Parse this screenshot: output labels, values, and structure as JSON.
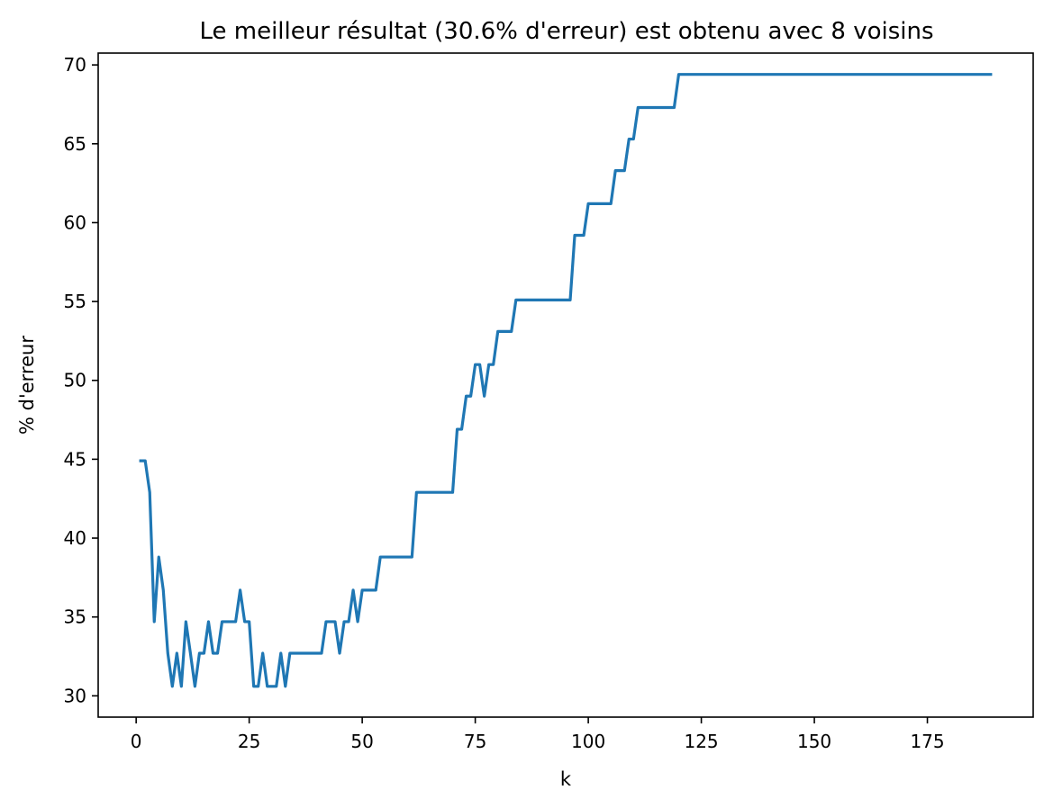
{
  "chart_data": {
    "type": "line",
    "title": "Le meilleur résultat (30.6% d'erreur) est obtenu avec 8 voisins",
    "xlabel": "k",
    "ylabel": "% d'erreur",
    "xlim": [
      -8.4,
      198.4
    ],
    "ylim": [
      28.65,
      70.75
    ],
    "xticks": [
      0,
      25,
      50,
      75,
      100,
      125,
      150,
      175
    ],
    "xtick_labels": [
      "0",
      "25",
      "50",
      "75",
      "100",
      "125",
      "150",
      "175"
    ],
    "yticks": [
      30,
      35,
      40,
      45,
      50,
      55,
      60,
      65,
      70
    ],
    "ytick_labels": [
      "30",
      "35",
      "40",
      "45",
      "50",
      "55",
      "60",
      "65",
      "70"
    ],
    "grid": false,
    "series": [
      {
        "color": "#1f77b4",
        "x": [
          1,
          2,
          3,
          4,
          5,
          6,
          7,
          8,
          9,
          10,
          11,
          12,
          13,
          14,
          15,
          16,
          17,
          18,
          19,
          20,
          21,
          22,
          23,
          24,
          25,
          26,
          27,
          28,
          29,
          30,
          31,
          32,
          33,
          34,
          35,
          36,
          37,
          38,
          39,
          40,
          41,
          42,
          43,
          44,
          45,
          46,
          47,
          48,
          49,
          50,
          51,
          52,
          53,
          54,
          55,
          56,
          57,
          58,
          59,
          60,
          61,
          62,
          63,
          64,
          65,
          66,
          67,
          68,
          69,
          70,
          71,
          72,
          73,
          74,
          75,
          76,
          77,
          78,
          79,
          80,
          81,
          82,
          83,
          84,
          85,
          86,
          87,
          88,
          89,
          90,
          91,
          92,
          93,
          94,
          95,
          96,
          97,
          98,
          99,
          100,
          101,
          102,
          103,
          104,
          105,
          106,
          107,
          108,
          109,
          110,
          111,
          112,
          113,
          114,
          115,
          116,
          117,
          118,
          119,
          120,
          189
        ],
        "y": [
          44.9,
          44.9,
          42.9,
          34.7,
          38.8,
          36.7,
          32.7,
          30.6,
          32.7,
          30.6,
          34.7,
          32.7,
          30.6,
          32.7,
          32.7,
          34.7,
          32.7,
          32.7,
          34.7,
          34.7,
          34.7,
          34.7,
          36.7,
          34.7,
          34.7,
          30.6,
          30.6,
          32.7,
          30.6,
          30.6,
          30.6,
          32.7,
          30.6,
          32.7,
          32.7,
          32.7,
          32.7,
          32.7,
          32.7,
          32.7,
          32.7,
          34.7,
          34.7,
          34.7,
          32.7,
          34.7,
          34.7,
          36.7,
          34.7,
          36.7,
          36.7,
          36.7,
          36.7,
          38.8,
          38.8,
          38.8,
          38.8,
          38.8,
          38.8,
          38.8,
          38.8,
          42.9,
          42.9,
          42.9,
          42.9,
          42.9,
          42.9,
          42.9,
          42.9,
          42.9,
          46.9,
          46.9,
          49.0,
          49.0,
          51.0,
          51.0,
          49.0,
          51.0,
          51.0,
          53.1,
          53.1,
          53.1,
          53.1,
          55.1,
          55.1,
          55.1,
          55.1,
          55.1,
          55.1,
          55.1,
          55.1,
          55.1,
          55.1,
          55.1,
          55.1,
          55.1,
          59.2,
          59.2,
          59.2,
          61.2,
          61.2,
          61.2,
          61.2,
          61.2,
          61.2,
          63.3,
          63.3,
          63.3,
          65.3,
          65.3,
          67.3,
          67.3,
          67.3,
          67.3,
          67.3,
          67.3,
          67.3,
          67.3,
          67.3,
          69.4,
          69.4
        ]
      }
    ]
  }
}
